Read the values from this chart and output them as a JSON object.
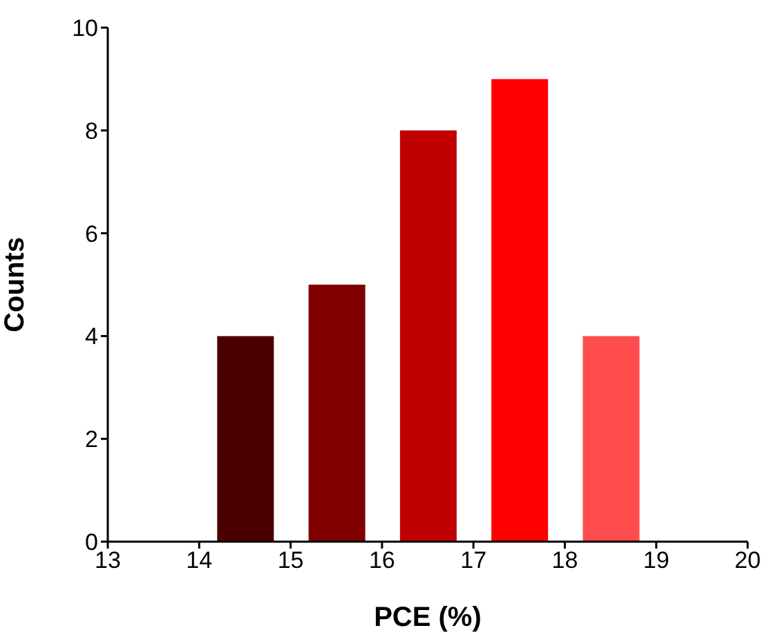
{
  "chart_data": {
    "type": "bar",
    "xlabel": "PCE (%)",
    "ylabel": "Counts",
    "x": [
      14.5,
      15.5,
      16.5,
      17.5,
      18.5
    ],
    "values": [
      4,
      5,
      8,
      9,
      4
    ],
    "colors": [
      "#4b0000",
      "#800000",
      "#c00000",
      "#ff0000",
      "#ff4d4d"
    ],
    "xlim": [
      13,
      20
    ],
    "xticks": [
      13,
      14,
      15,
      16,
      17,
      18,
      19,
      20
    ],
    "ylim": [
      0,
      10
    ],
    "yticks": [
      0,
      2,
      4,
      6,
      8,
      10
    ],
    "grid": false,
    "legend": false
  }
}
